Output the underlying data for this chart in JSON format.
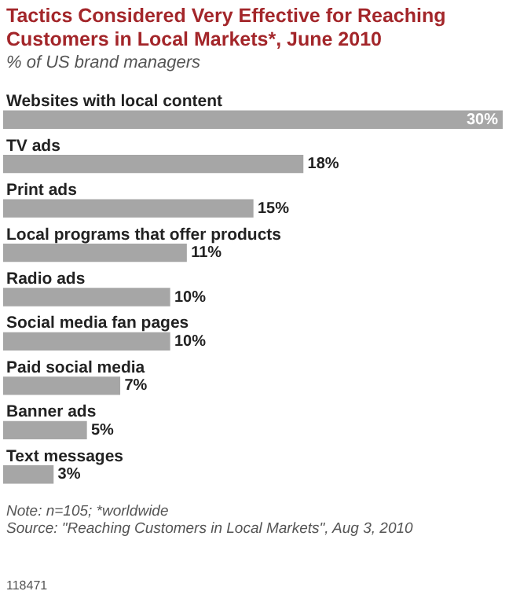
{
  "chart_data": {
    "type": "bar",
    "orientation": "horizontal",
    "title": "Tactics Considered Very Effective for Reaching Customers in Local Markets*, June 2010",
    "subtitle": "% of US brand managers",
    "categories": [
      "Websites with local content",
      "TV ads",
      "Print ads",
      "Local programs that offer products",
      "Radio ads",
      "Social media fan pages",
      "Paid social media",
      "Banner ads",
      "Text messages"
    ],
    "values": [
      30,
      18,
      15,
      11,
      10,
      10,
      7,
      5,
      3
    ],
    "value_labels": [
      "30%",
      "18%",
      "15%",
      "11%",
      "10%",
      "10%",
      "7%",
      "5%",
      "3%"
    ],
    "color": "#a6a6a6",
    "legend": false,
    "annotations": [
      "Note: n=105; *worldwide",
      "Source: \"Reaching Customers in Local Markets\", Aug 3, 2010",
      "118471"
    ]
  }
}
